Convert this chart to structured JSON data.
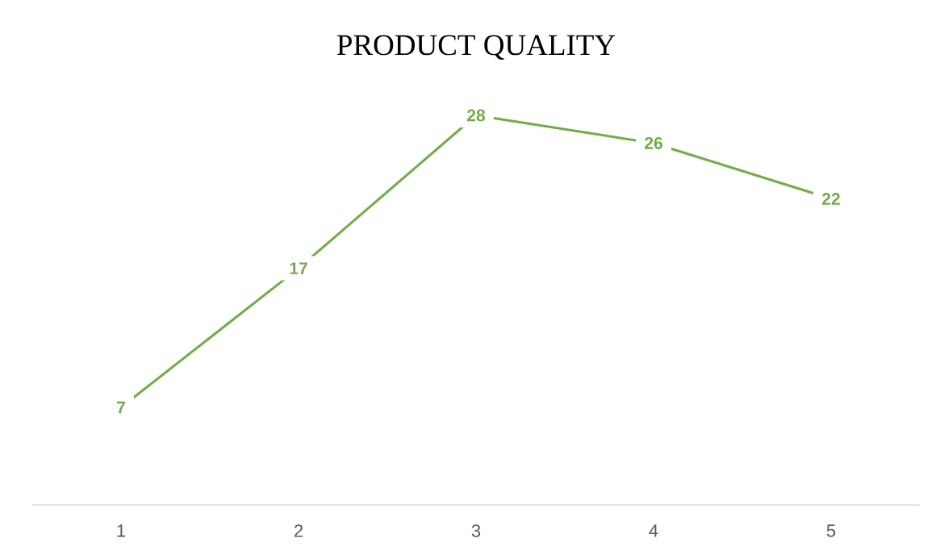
{
  "chart_data": {
    "type": "line",
    "title": "PRODUCT QUALITY",
    "categories": [
      "1",
      "2",
      "3",
      "4",
      "5"
    ],
    "values": [
      7,
      17,
      28,
      26,
      22
    ],
    "color": "#70ad47",
    "data_labels": true,
    "tick_labels": "x",
    "line_style": "solid"
  }
}
